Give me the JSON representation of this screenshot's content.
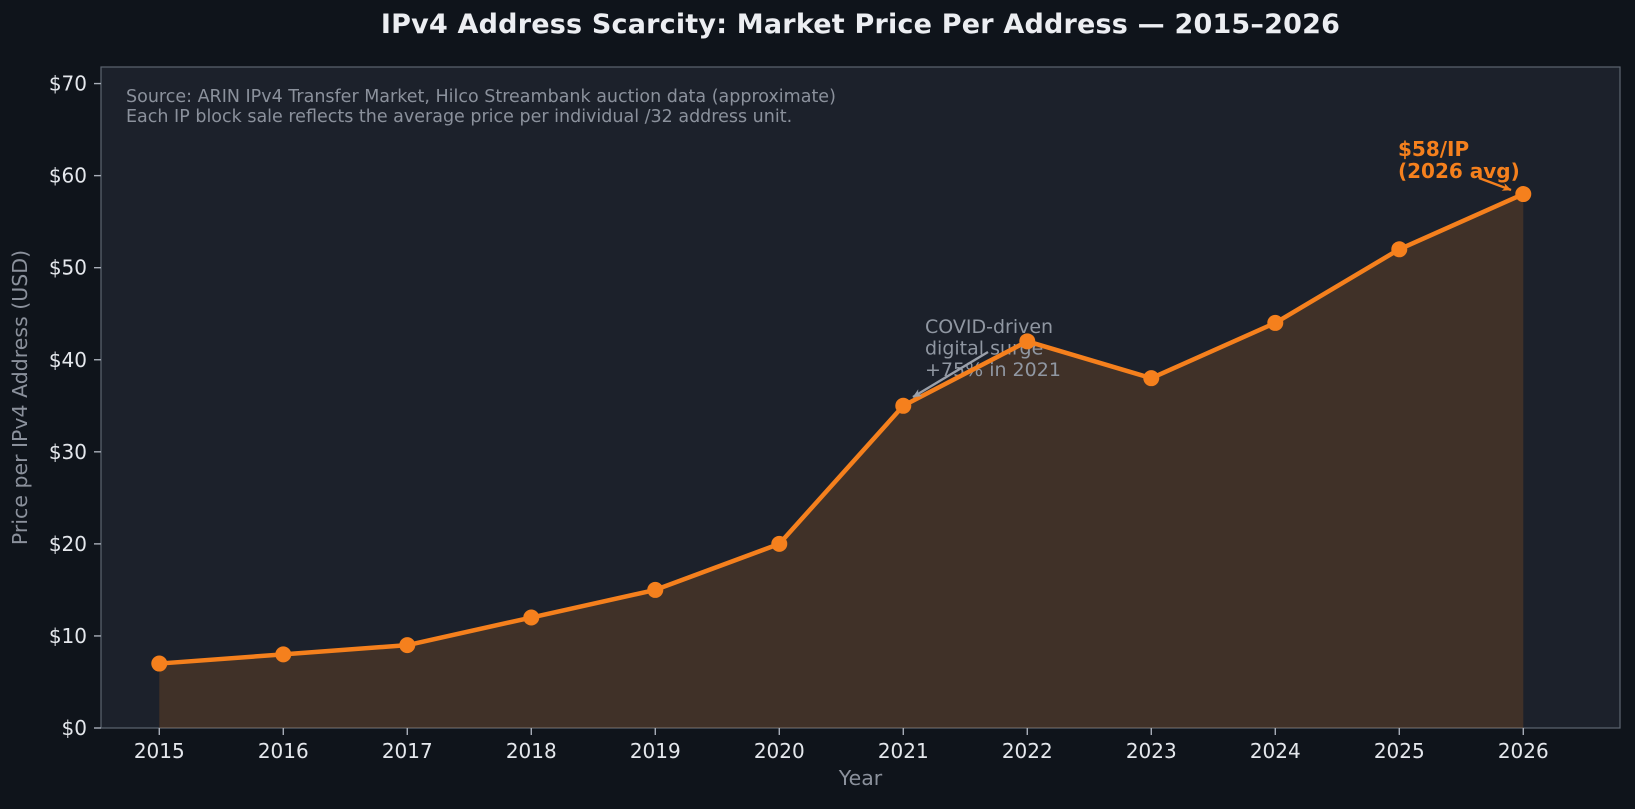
{
  "title": "IPv4 Address Scarcity: Market Price Per Address — 2015–2026",
  "source_note": {
    "line1": "Source: ARIN IPv4 Transfer Market, Hilco Streambank auction data (approximate)",
    "line2": "Each IP block sale reflects the average price per individual /32 address unit."
  },
  "colors": {
    "figure_background": "#0f141b",
    "plot_background": "#1c212b",
    "spine": "#5d6570",
    "tick_mark": "#a9afb9",
    "tick_label": "#e4e7ec",
    "axis_label": "#8b919c",
    "title_text": "#eceef2",
    "accent_orange": "#f5801d",
    "area_fill": "rgba(245,128,29,0.17)",
    "annotation_gray": "#9097a2"
  },
  "chart_data": {
    "type": "line",
    "title": "IPv4 Address Scarcity: Market Price Per Address — 2015–2026",
    "xlabel": "Year",
    "ylabel": "Price per IPv4 Address (USD)",
    "x": [
      2015,
      2016,
      2017,
      2018,
      2019,
      2020,
      2021,
      2022,
      2023,
      2024,
      2025,
      2026
    ],
    "series": [
      {
        "name": "Price per IPv4 Address (USD)",
        "values": [
          7,
          8,
          9,
          12,
          15,
          20,
          35,
          42,
          38,
          44,
          52,
          58
        ],
        "color": "#f5801d",
        "marker": "circle",
        "area_fill": true
      }
    ],
    "x_tick_labels": [
      "2015",
      "2016",
      "2017",
      "2018",
      "2019",
      "2020",
      "2021",
      "2022",
      "2023",
      "2024",
      "2025",
      "2026"
    ],
    "y_ticks": [
      0,
      10,
      20,
      30,
      40,
      50,
      60,
      70
    ],
    "y_tick_labels": [
      "$0",
      "$10",
      "$20",
      "$30",
      "$40",
      "$50",
      "$60",
      "$70"
    ],
    "xlim": [
      2014.53,
      2026.78
    ],
    "ylim": [
      0,
      71.8
    ],
    "grid": false,
    "legend": "none",
    "annotations": [
      {
        "text": "COVID-driven\ndigital surge\n+75% in 2021",
        "target": {
          "x": 2021,
          "y": 35
        },
        "color": "#9097a2",
        "arrow_color": "#9aa0aa",
        "bold": false
      },
      {
        "text": "$58/IP\n(2026 avg)",
        "target": {
          "x": 2026,
          "y": 58
        },
        "color": "#f5801d",
        "arrow_color": "#f5801d",
        "bold": true
      }
    ]
  }
}
